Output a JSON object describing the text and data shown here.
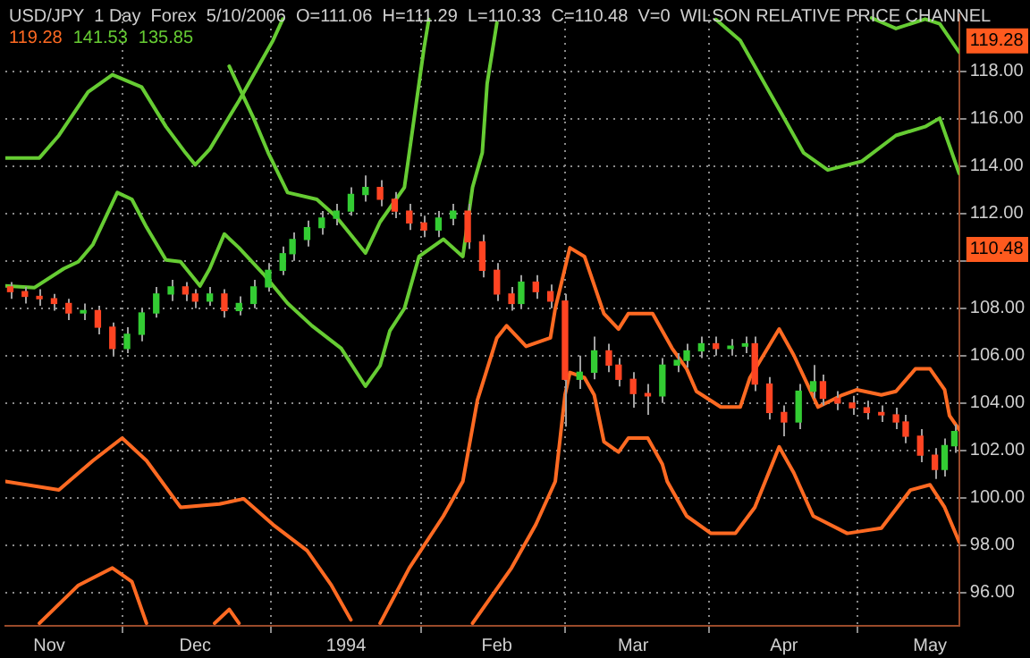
{
  "chart_data": {
    "type": "candlestick",
    "title": "USD/JPY  1 Day  Forex  5/10/2006  O=111.06  H=111.29  L=110.33  C=110.48  V=0  WILSON RELATIVE PRICE CHANNEL",
    "annotations": [
      "119.28",
      "141.53",
      "135.85"
    ],
    "x": [
      "1993-10-24",
      "1993-10-27",
      "1993-10-30",
      "1993-11-02",
      "1993-11-05",
      "1993-11-08",
      "1993-11-11",
      "1993-11-14",
      "1993-11-17",
      "1993-11-20",
      "1993-11-23",
      "1993-11-26",
      "1993-11-29",
      "1993-12-01",
      "1993-12-04",
      "1993-12-07",
      "1993-12-10",
      "1993-12-13",
      "1993-12-16",
      "1993-12-19",
      "1993-12-21",
      "1993-12-24",
      "1993-12-27",
      "1993-12-30",
      "1994-01-02",
      "1994-01-05",
      "1994-01-08",
      "1994-01-11",
      "1994-01-14",
      "1994-01-17",
      "1994-01-20",
      "1994-01-23",
      "1994-01-26",
      "1994-01-29",
      "1994-02-01",
      "1994-02-04",
      "1994-02-06",
      "1994-02-09",
      "1994-02-12",
      "1994-02-15",
      "1994-02-18",
      "1994-02-21",
      "1994-02-24",
      "1994-02-26",
      "1994-03-01",
      "1994-03-04",
      "1994-03-07",
      "1994-03-10",
      "1994-03-12",
      "1994-03-15",
      "1994-03-18",
      "1994-03-21",
      "1994-03-24",
      "1994-03-26",
      "1994-03-29",
      "1994-04-01",
      "1994-04-04",
      "1994-04-07",
      "1994-04-09",
      "1994-04-12",
      "1994-04-15",
      "1994-04-18",
      "1994-04-21",
      "1994-04-24",
      "1994-04-26",
      "1994-04-29",
      "1994-05-02",
      "1994-05-04",
      "1994-05-06"
    ],
    "ohlc": [
      [
        108.9,
        109.1,
        108.4,
        108.7
      ],
      [
        108.7,
        108.9,
        108.2,
        108.5
      ],
      [
        108.5,
        108.8,
        108.1,
        108.4
      ],
      [
        108.4,
        108.6,
        107.9,
        108.2
      ],
      [
        108.2,
        108.4,
        107.5,
        107.8
      ],
      [
        107.8,
        108.2,
        107.5,
        107.9
      ],
      [
        107.9,
        108.1,
        106.9,
        107.2
      ],
      [
        107.2,
        107.4,
        106.0,
        106.3
      ],
      [
        106.3,
        107.2,
        106.1,
        106.9
      ],
      [
        106.9,
        108.0,
        106.6,
        107.8
      ],
      [
        107.8,
        108.9,
        107.6,
        108.6
      ],
      [
        108.6,
        109.2,
        108.3,
        108.9
      ],
      [
        108.9,
        109.1,
        108.3,
        108.6
      ],
      [
        108.6,
        108.8,
        108.0,
        108.3
      ],
      [
        108.3,
        108.9,
        108.1,
        108.6
      ],
      [
        108.6,
        108.8,
        107.6,
        107.9
      ],
      [
        107.9,
        108.5,
        107.7,
        108.2
      ],
      [
        108.2,
        109.2,
        108.0,
        108.9
      ],
      [
        108.9,
        109.9,
        108.7,
        109.6
      ],
      [
        109.6,
        110.6,
        109.4,
        110.3
      ],
      [
        110.3,
        111.2,
        110.0,
        110.9
      ],
      [
        110.9,
        111.7,
        110.6,
        111.4
      ],
      [
        111.4,
        112.1,
        111.1,
        111.8
      ],
      [
        111.8,
        112.4,
        111.5,
        112.1
      ],
      [
        112.1,
        113.1,
        111.9,
        112.8
      ],
      [
        112.8,
        113.6,
        112.5,
        113.1
      ],
      [
        113.1,
        113.4,
        112.3,
        112.6
      ],
      [
        112.6,
        112.9,
        111.8,
        112.1
      ],
      [
        112.1,
        112.4,
        111.3,
        111.6
      ],
      [
        111.6,
        111.9,
        111.0,
        111.3
      ],
      [
        111.3,
        112.1,
        111.0,
        111.8
      ],
      [
        111.8,
        112.4,
        111.5,
        112.1
      ],
      [
        112.1,
        112.4,
        110.5,
        110.8
      ],
      [
        110.8,
        111.1,
        109.3,
        109.6
      ],
      [
        109.6,
        109.9,
        108.3,
        108.6
      ],
      [
        108.6,
        108.9,
        107.9,
        108.2
      ],
      [
        108.2,
        109.4,
        108.0,
        109.1
      ],
      [
        109.1,
        109.4,
        108.4,
        108.7
      ],
      [
        108.7,
        109.0,
        108.0,
        108.3
      ],
      [
        108.3,
        108.6,
        103.0,
        105.0
      ],
      [
        105.0,
        106.0,
        104.6,
        105.3
      ],
      [
        105.3,
        106.8,
        105.0,
        106.2
      ],
      [
        106.2,
        106.5,
        105.3,
        105.6
      ],
      [
        105.6,
        105.9,
        104.7,
        105.0
      ],
      [
        105.0,
        105.3,
        103.8,
        104.4
      ],
      [
        104.4,
        104.8,
        103.5,
        104.3
      ],
      [
        104.3,
        105.9,
        104.0,
        105.6
      ],
      [
        105.6,
        106.1,
        105.3,
        105.8
      ],
      [
        105.8,
        106.5,
        105.5,
        106.2
      ],
      [
        106.2,
        106.8,
        105.9,
        106.5
      ],
      [
        106.5,
        106.8,
        106.0,
        106.3
      ],
      [
        106.3,
        106.7,
        106.0,
        106.4
      ],
      [
        106.4,
        106.8,
        106.1,
        106.5
      ],
      [
        106.5,
        106.8,
        104.5,
        104.8
      ],
      [
        104.8,
        105.1,
        103.3,
        103.6
      ],
      [
        103.6,
        103.9,
        102.6,
        103.2
      ],
      [
        103.2,
        104.8,
        102.9,
        104.5
      ],
      [
        104.5,
        105.6,
        104.2,
        104.9
      ],
      [
        104.9,
        105.2,
        103.9,
        104.2
      ],
      [
        104.2,
        104.5,
        103.7,
        104.0
      ],
      [
        104.0,
        104.3,
        103.5,
        103.8
      ],
      [
        103.8,
        104.1,
        103.3,
        103.6
      ],
      [
        103.6,
        103.9,
        103.2,
        103.5
      ],
      [
        103.5,
        103.8,
        102.9,
        103.2
      ],
      [
        103.2,
        103.5,
        102.3,
        102.6
      ],
      [
        102.6,
        102.9,
        101.5,
        101.8
      ],
      [
        101.8,
        102.1,
        100.8,
        101.2
      ],
      [
        101.2,
        102.5,
        100.9,
        102.2
      ],
      [
        102.2,
        103.1,
        101.9,
        102.8
      ]
    ],
    "colors": [
      "#ff4422",
      "#ff4422",
      "#ff4422",
      "#ff4422",
      "#ff4422",
      "#33cc33",
      "#ff4422",
      "#ff4422",
      "#33cc33",
      "#33cc33",
      "#33cc33",
      "#33cc33",
      "#ff4422",
      "#ff4422",
      "#33cc33",
      "#ff4422",
      "#33cc33",
      "#33cc33",
      "#33cc33",
      "#33cc33",
      "#33cc33",
      "#33cc33",
      "#33cc33",
      "#33cc33",
      "#33cc33",
      "#33cc33",
      "#ff4422",
      "#ff4422",
      "#ff4422",
      "#ff4422",
      "#33cc33",
      "#33cc33",
      "#ff4422",
      "#ff4422",
      "#ff4422",
      "#ff4422",
      "#33cc33",
      "#ff4422",
      "#ff4422",
      "#ff4422",
      "#33cc33",
      "#33cc33",
      "#ff4422",
      "#ff4422",
      "#ff4422",
      "#ff4422",
      "#33cc33",
      "#33cc33",
      "#33cc33",
      "#33cc33",
      "#ff4422",
      "#33cc33",
      "#33cc33",
      "#ff4422",
      "#ff4422",
      "#ff4422",
      "#33cc33",
      "#33cc33",
      "#ff4422",
      "#ff4422",
      "#ff4422",
      "#ff4422",
      "#ff4422",
      "#ff4422",
      "#ff4422",
      "#ff4422",
      "#ff4422",
      "#33cc33",
      "#33cc33"
    ],
    "series": [
      {
        "type": "line",
        "color": "#66cc33",
        "x": [
          "1993-10-23",
          "1993-10-30",
          "1993-11-03",
          "1993-11-09",
          "1993-11-14",
          "1993-11-20",
          "1993-11-25",
          "1993-11-29",
          "1993-12-01",
          "1993-12-04",
          "1993-12-10",
          "1993-12-17",
          "1993-12-19",
          "1994-02-15",
          "1994-04-19",
          "1994-04-24",
          "1994-04-30",
          "1994-05-03",
          "1994-05-07"
        ],
        "values": [
          114.34,
          114.34,
          115.29,
          117.12,
          117.85,
          117.33,
          115.66,
          114.56,
          114.05,
          114.71,
          116.75,
          119.3,
          120.2,
          null,
          120.25,
          119.8,
          120.2,
          120.0,
          118.8
        ]
      },
      {
        "type": "line",
        "color": "#66cc33",
        "x": [
          "1993-12-08",
          "1993-12-13",
          "1993-12-16",
          "1993-12-20",
          "1993-12-26",
          "1993-12-30",
          "1994-01-05",
          "1994-01-08",
          "1994-01-13",
          "1994-01-15",
          "1994-01-17",
          "1994-01-18",
          "1994-02-20",
          "1994-03-18",
          "1994-03-23",
          "1994-03-31",
          "1994-04-05",
          "1994-04-10",
          "1994-04-17",
          "1994-04-24",
          "1994-04-30",
          "1994-05-03",
          "1994-05-07"
        ],
        "values": [
          118.21,
          116.02,
          114.56,
          112.88,
          112.59,
          111.86,
          110.33,
          111.64,
          113.1,
          116.02,
          118.94,
          120.18,
          null,
          120.18,
          119.3,
          116.39,
          114.56,
          113.83,
          114.2,
          115.29,
          115.66,
          116.02,
          113.68
        ]
      },
      {
        "type": "line",
        "color": "#66cc33",
        "x": [
          "1993-10-23",
          "1993-10-29",
          "1993-11-04",
          "1993-11-07",
          "1993-11-10",
          "1993-11-15",
          "1993-11-18",
          "1993-11-21",
          "1993-11-25",
          "1993-11-28",
          "1993-12-02",
          "1993-12-04",
          "1993-12-07",
          "1993-12-10",
          "1993-12-15",
          "1993-12-20",
          "1993-12-25",
          "1993-12-31",
          "1994-01-05",
          "1994-01-08",
          "1994-01-10",
          "1994-01-13",
          "1994-01-16",
          "1994-01-21",
          "1994-01-25",
          "1994-01-27",
          "1994-01-29",
          "1994-01-30",
          "1994-02-01"
        ],
        "values": [
          108.94,
          108.87,
          109.67,
          109.96,
          110.69,
          112.88,
          112.59,
          111.42,
          110.04,
          109.96,
          108.94,
          109.67,
          111.13,
          110.55,
          109.45,
          108.21,
          107.26,
          106.31,
          104.71,
          105.58,
          107.04,
          107.99,
          110.18,
          110.91,
          110.18,
          113.1,
          114.56,
          117.48,
          120.04
        ]
      },
      {
        "type": "line",
        "color": "#ff6a22",
        "x": [
          "1993-10-23",
          "1993-11-03",
          "1993-11-10",
          "1993-11-16",
          "1993-11-21",
          "1993-11-28",
          "1993-12-06",
          "1993-12-11",
          "1993-12-17",
          "1993-12-24",
          "1993-12-29",
          "1994-01-02"
        ],
        "values": [
          100.69,
          100.33,
          101.57,
          102.52,
          101.57,
          99.6,
          99.74,
          99.96,
          98.87,
          97.77,
          96.31,
          94.85
        ]
      },
      {
        "type": "line",
        "color": "#ff6a22",
        "x": [
          "1993-10-30",
          "1993-11-07",
          "1993-11-14",
          "1993-11-18",
          "1993-11-21",
          "1993-12-01",
          "1993-12-05",
          "1993-12-08",
          "1993-12-10"
        ],
        "values": [
          94.71,
          96.31,
          97.04,
          96.46,
          94.71,
          null,
          94.71,
          95.29,
          94.71
        ]
      },
      {
        "type": "line",
        "color": "#ff6a22",
        "x": [
          "1994-01-08",
          "1994-01-14",
          "1994-01-21",
          "1994-01-25",
          "1994-01-28",
          "1994-02-01",
          "1994-02-03",
          "1994-02-07",
          "1994-02-12",
          "1994-02-13",
          "1994-02-16",
          "1994-02-19",
          "1994-02-23",
          "1994-02-26",
          "1994-02-28",
          "1994-03-05",
          "1994-03-09",
          "1994-03-12",
          "1994-03-14",
          "1994-03-19",
          "1994-03-23",
          "1994-03-25",
          "1994-03-31",
          "1994-04-03",
          "1994-04-08",
          "1994-04-13",
          "1994-04-16",
          "1994-04-21",
          "1994-04-24",
          "1994-04-28",
          "1994-05-01",
          "1994-05-04",
          "1994-05-05",
          "1994-05-07"
        ],
        "values": [
          94.71,
          97.04,
          99.23,
          100.69,
          104.12,
          106.75,
          107.26,
          106.39,
          106.75,
          107.99,
          110.55,
          110.18,
          107.77,
          107.12,
          107.77,
          107.77,
          106.31,
          105.44,
          104.49,
          103.83,
          103.83,
          105.07,
          107.12,
          106.02,
          103.83,
          104.34,
          104.56,
          104.34,
          104.49,
          105.44,
          105.44,
          104.56,
          103.47,
          102.88
        ]
      },
      {
        "type": "line",
        "color": "#ff6a22",
        "x": [
          "1994-01-27",
          "1994-02-04",
          "1994-02-09",
          "1994-02-13",
          "1994-02-15",
          "1994-02-16",
          "1994-02-19",
          "1994-02-21",
          "1994-02-23",
          "1994-02-26",
          "1994-02-28",
          "1994-03-04",
          "1994-03-07",
          "1994-03-08",
          "1994-03-12",
          "1994-03-17",
          "1994-03-22",
          "1994-03-26",
          "1994-03-31",
          "1994-04-03",
          "1994-04-07",
          "1994-04-14",
          "1994-04-21",
          "1994-04-27",
          "1994-05-01",
          "1994-05-04",
          "1994-05-07"
        ],
        "values": [
          94.71,
          97.04,
          98.87,
          100.69,
          104.34,
          105.29,
          105.07,
          104.34,
          102.37,
          101.93,
          102.52,
          102.52,
          101.42,
          100.69,
          99.23,
          98.5,
          98.5,
          99.6,
          102.15,
          101.06,
          99.23,
          98.5,
          98.72,
          100.33,
          100.55,
          99.6,
          98.14
        ]
      }
    ],
    "xlim": [
      "1993-10-23",
      "1994-05-07"
    ],
    "xticks": [
      {
        "value": "1993-11-01",
        "label": "Nov"
      },
      {
        "value": "1993-12-01",
        "label": "Dec"
      },
      {
        "value": "1994-01-01",
        "label": "1994"
      },
      {
        "value": "1994-02-01",
        "label": "Feb"
      },
      {
        "value": "1994-03-01",
        "label": "Mar"
      },
      {
        "value": "1994-04-01",
        "label": "Apr"
      },
      {
        "value": "1994-05-01",
        "label": "May"
      }
    ],
    "ylim": [
      94.6,
      120.4
    ],
    "yticks": [
      {
        "value": 96,
        "label": "96.00"
      },
      {
        "value": 98,
        "label": "98.00"
      },
      {
        "value": 100,
        "label": "100.00"
      },
      {
        "value": 102,
        "label": "102.00"
      },
      {
        "value": 104,
        "label": "104.00"
      },
      {
        "value": 106,
        "label": "106.00"
      },
      {
        "value": 108,
        "label": "108.00"
      },
      {
        "value": 110,
        "label": null
      },
      {
        "value": 110.48,
        "label": "110.48"
      },
      {
        "value": 112,
        "label": "112.00"
      },
      {
        "value": 114,
        "label": "114.00"
      },
      {
        "value": 116,
        "label": "116.00"
      },
      {
        "value": 118,
        "label": "118.00"
      },
      {
        "value": 119.28,
        "label": "119.28"
      }
    ],
    "grid": true,
    "marker": "none",
    "line_style": "solid"
  }
}
